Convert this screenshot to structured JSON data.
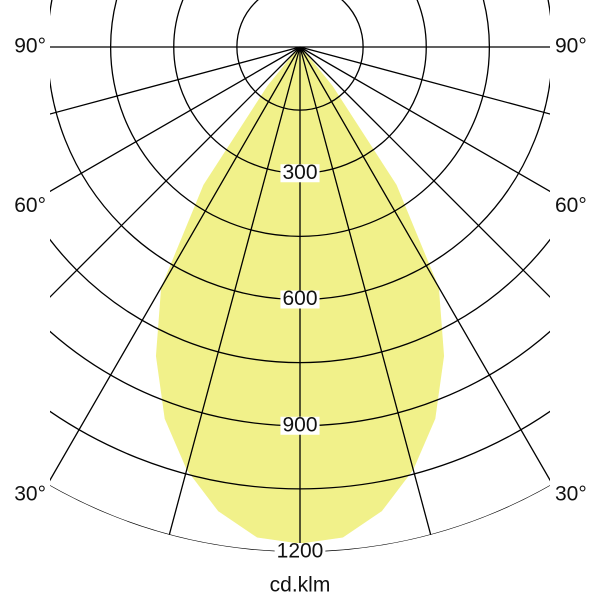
{
  "chart_data": {
    "type": "polar",
    "unit_label": "cd.klm",
    "rlim": [
      0,
      1200
    ],
    "rticks": [
      {
        "value": 150,
        "label": null
      },
      300,
      {
        "value": 450,
        "label": null
      },
      600,
      {
        "value": 750,
        "label": null
      },
      900,
      {
        "value": 1050,
        "label": null
      },
      1200
    ],
    "angle_ticks": [
      {
        "value": 0,
        "label": null
      },
      {
        "value": 15,
        "label": null
      },
      {
        "value": 30,
        "label": "30°"
      },
      {
        "value": 45,
        "label": null
      },
      {
        "value": 60,
        "label": "60°"
      },
      {
        "value": 75,
        "label": null
      },
      {
        "value": 90,
        "label": "90°"
      }
    ],
    "x": [
      -50,
      -45,
      -40,
      -35,
      -30,
      -25,
      -20,
      -15,
      -10,
      -5,
      0,
      5,
      10,
      15,
      20,
      25,
      30,
      35,
      40,
      45,
      50
    ],
    "values": [
      0,
      20,
      120,
      400,
      660,
      810,
      940,
      1040,
      1120,
      1170,
      1180,
      1170,
      1120,
      1040,
      940,
      810,
      660,
      400,
      120,
      20,
      0
    ],
    "color": "#f1f18a"
  }
}
